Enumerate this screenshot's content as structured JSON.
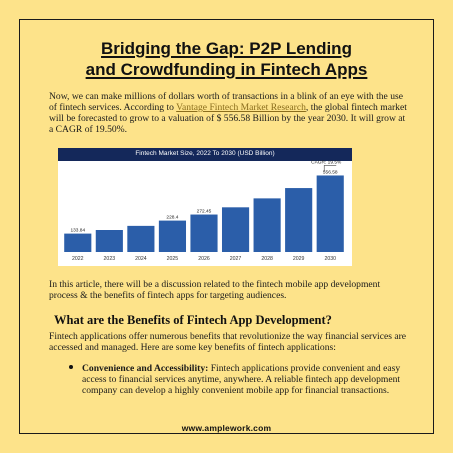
{
  "document": {
    "title_line1": "Bridging the Gap: P2P Lending",
    "title_line2": "and Crowdfunding in Fintech Apps",
    "intro_before_link": "Now, we can make millions of dollars worth of transactions in a blink of an eye with the use of fintech services. According to ",
    "intro_link_text": "Vantage Fintech Market Research",
    "intro_after_link": ", the global fintech market will be forecasted to grow to a valuation of $ 556.58 Billion by the year 2030. It will grow at a CAGR of 19.50%.",
    "article_text": "In this article, there will be a discussion related to the fintech mobile app development process & the benefits of fintech apps for targeting audiences.",
    "section_heading": "What are the Benefits of Fintech App Development?",
    "section_intro": "Fintech applications offer numerous benefits that revolutionize the way financial services are accessed and managed. Here are some key benefits of fintech applications:",
    "bullet_title": "Convenience and Accessibility:",
    "bullet_text": " Fintech applications provide convenient and easy access to financial services anytime, anywhere. A reliable fintech app development company can develop a highly convenient mobile app for financial transactions.",
    "footer_url": "www.amplework.com"
  },
  "chart_data": {
    "type": "bar",
    "title": "Fintech Market Size, 2022 To 2030 (USD Billion)",
    "categories": [
      "2022",
      "2023",
      "2024",
      "2025",
      "2026",
      "2027",
      "2028",
      "2029",
      "2030"
    ],
    "values": [
      133.84,
      160,
      190,
      228.4,
      272.45,
      325,
      390,
      465,
      556.58
    ],
    "data_labels": [
      "133.84",
      "",
      "",
      "228.4",
      "272.45",
      "",
      "",
      "",
      "556.58"
    ],
    "annotation": "CAGR: 19.5%",
    "ylim": [
      0,
      640
    ],
    "bar_color": "#2b5ea9",
    "header_color": "#14285a",
    "grid": false
  }
}
